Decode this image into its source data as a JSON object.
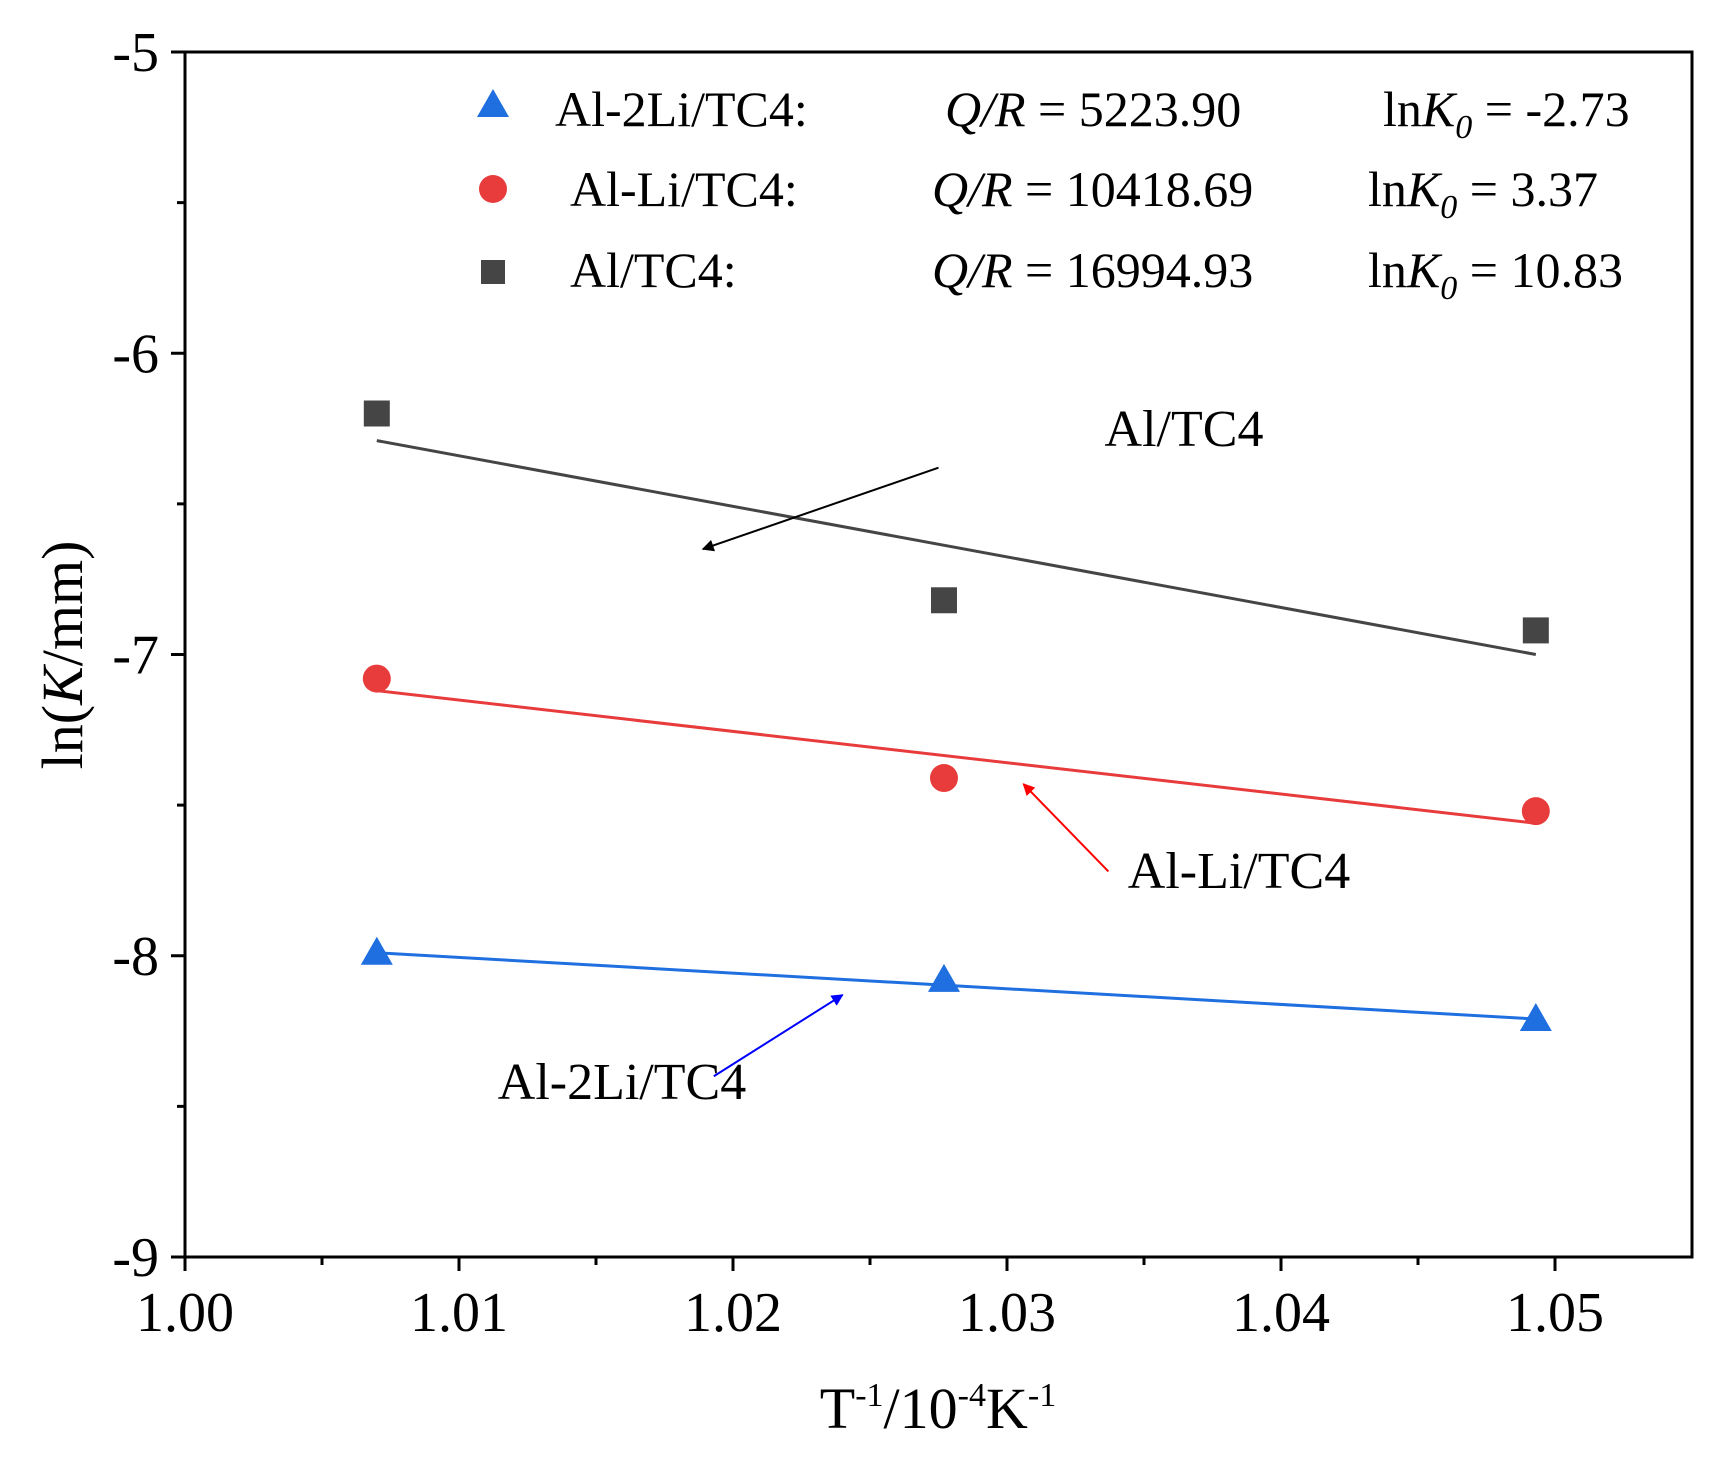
{
  "chart_data": {
    "type": "scatter",
    "xlabel": {
      "base1": "T",
      "sup1": "-1",
      "mid": "/10",
      "sup2": "-4",
      "base2": "K",
      "sup3": "-1"
    },
    "ylabel": {
      "pre": "ln(",
      "ital": "K",
      "post": "/mm)"
    },
    "xlim": [
      1.0,
      1.055
    ],
    "ylim": [
      -9,
      -5
    ],
    "x_ticks": [
      {
        "value": 1.0,
        "label": "1.00"
      },
      {
        "value": 1.01,
        "label": "1.01"
      },
      {
        "value": 1.02,
        "label": "1.02"
      },
      {
        "value": 1.03,
        "label": "1.03"
      },
      {
        "value": 1.04,
        "label": "1.04"
      },
      {
        "value": 1.05,
        "label": "1.05"
      }
    ],
    "x_minor_ticks": [
      1.005,
      1.015,
      1.025,
      1.035,
      1.045
    ],
    "y_ticks": [
      {
        "value": -5,
        "label": "-5"
      },
      {
        "value": -6,
        "label": "-6"
      },
      {
        "value": -7,
        "label": "-7"
      },
      {
        "value": -8,
        "label": "-8"
      },
      {
        "value": -9,
        "label": "-9"
      }
    ],
    "y_minor_ticks": [
      -5.5,
      -6.5,
      -7.5,
      -8.5
    ],
    "series": [
      {
        "name": "Al-2Li/TC4",
        "slug": "al-2li-tc4",
        "marker": "triangle",
        "color": "#1f6fe0",
        "x": [
          1.007,
          1.0277,
          1.0493
        ],
        "y": [
          -7.99,
          -8.08,
          -8.21
        ],
        "fit": {
          "x": [
            1.007,
            1.0493
          ],
          "y": [
            -7.99,
            -8.21
          ]
        },
        "legend": {
          "label": "Al-2Li/TC4:",
          "qr_value": "= 5223.90",
          "lnk0_value": "= -2.73"
        }
      },
      {
        "name": "Al-Li/TC4",
        "slug": "al-li-tc4",
        "marker": "circle",
        "color": "#e83c3c",
        "x": [
          1.007,
          1.0277,
          1.0493
        ],
        "y": [
          -7.08,
          -7.41,
          -7.52
        ],
        "fit": {
          "x": [
            1.007,
            1.0493
          ],
          "y": [
            -7.12,
            -7.56
          ]
        },
        "legend": {
          "label": "Al-Li/TC4:",
          "qr_value": "= 10418.69",
          "lnk0_value": "= 3.37"
        }
      },
      {
        "name": "Al/TC4",
        "slug": "al-tc4",
        "marker": "square",
        "color": "#454545",
        "x": [
          1.007,
          1.0277,
          1.0493
        ],
        "y": [
          -6.2,
          -6.82,
          -6.92
        ],
        "fit": {
          "x": [
            1.007,
            1.0493
          ],
          "y": [
            -6.29,
            -7.0
          ]
        },
        "legend": {
          "label": "Al/TC4:",
          "qr_value": "= 16994.93",
          "lnk0_value": "= 10.83"
        }
      }
    ],
    "legend_terms": {
      "qr_label": "Q/R",
      "lnk0_prefix": "ln",
      "lnk0_ital": "K",
      "lnk0_sub": "0"
    },
    "annotations": [
      {
        "text": "Al/TC4",
        "series": "Al/TC4",
        "color": "#000000",
        "text_at": [
          1.0335,
          -6.32
        ],
        "arrow_from": [
          1.0275,
          -6.38
        ],
        "arrow_to": [
          1.0189,
          -6.65
        ]
      },
      {
        "text": "Al-Li/TC4",
        "series": "Al-Li/TC4",
        "color": "#ff0000",
        "text_at": [
          1.0443,
          -7.75
        ],
        "arrow_from": [
          1.0337,
          -7.72
        ],
        "arrow_to": [
          1.0306,
          -7.43
        ]
      },
      {
        "text": "Al-2Li/TC4",
        "series": "Al-2Li/TC4",
        "color": "#0000ff",
        "text_at": [
          1.0206,
          -8.47
        ],
        "arrow_from": [
          1.0193,
          -8.4
        ],
        "arrow_to": [
          1.024,
          -8.13
        ]
      }
    ]
  }
}
